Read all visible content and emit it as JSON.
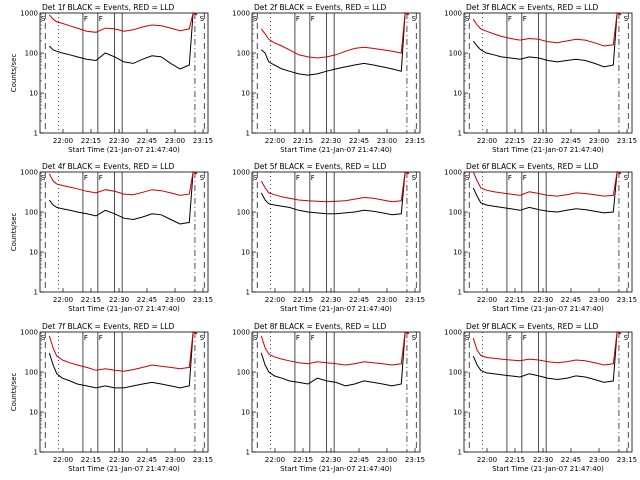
{
  "chart_data": [
    {
      "type": "line",
      "title": "Det 1f  BLACK = Events, RED = LLD",
      "ylabel": "Counts/sec",
      "xlabel": "Start Time (21-Jan-07 21:47:40)",
      "xticks": [
        "22:00",
        "22:15",
        "22:30",
        "22:45",
        "23:00",
        "23:15"
      ],
      "yticks": [
        "1",
        "10",
        "100",
        "1000"
      ],
      "yscale": "log",
      "ylim": [
        1,
        1000
      ],
      "markers": [
        "S",
        "F",
        "F",
        "S"
      ],
      "series": [
        {
          "name": "Events",
          "color": "#000000",
          "x": [
            5,
            7,
            9,
            12,
            16,
            20,
            25,
            30,
            35,
            40,
            45,
            50,
            55,
            60,
            65,
            70,
            75,
            80,
            82,
            84
          ],
          "y": [
            150,
            120,
            110,
            100,
            90,
            80,
            70,
            65,
            100,
            80,
            60,
            55,
            70,
            85,
            80,
            55,
            40,
            50,
            1000,
            900
          ]
        },
        {
          "name": "LLD",
          "color": "#cc0000",
          "x": [
            5,
            7,
            9,
            12,
            16,
            20,
            25,
            30,
            35,
            40,
            45,
            50,
            55,
            60,
            65,
            70,
            75,
            80,
            82,
            84
          ],
          "y": [
            900,
            700,
            600,
            550,
            480,
            420,
            350,
            330,
            420,
            400,
            350,
            380,
            450,
            500,
            480,
            420,
            360,
            400,
            1000,
            950
          ]
        }
      ]
    },
    {
      "type": "line",
      "title": "Det 2f  BLACK = Events, RED = LLD",
      "ylabel": "",
      "xlabel": "Start Time (21-Jan-07 21:47:40)",
      "xticks": [
        "22:00",
        "22:15",
        "22:30",
        "22:45",
        "23:00",
        "23:15"
      ],
      "yticks": [
        "1",
        "10",
        "100",
        "1000"
      ],
      "yscale": "log",
      "ylim": [
        1,
        1000
      ],
      "markers": [
        "S",
        "F",
        "F",
        "S"
      ],
      "series": [
        {
          "name": "Events",
          "color": "#000000",
          "x": [
            5,
            7,
            9,
            12,
            16,
            20,
            25,
            30,
            35,
            40,
            45,
            50,
            55,
            60,
            65,
            70,
            75,
            80,
            82,
            84
          ],
          "y": [
            120,
            100,
            60,
            50,
            40,
            35,
            30,
            28,
            30,
            35,
            40,
            45,
            50,
            55,
            50,
            45,
            40,
            35,
            1000,
            900
          ]
        },
        {
          "name": "LLD",
          "color": "#cc0000",
          "x": [
            5,
            7,
            9,
            12,
            16,
            20,
            25,
            30,
            35,
            40,
            45,
            50,
            55,
            60,
            65,
            70,
            75,
            80,
            82,
            84
          ],
          "y": [
            400,
            300,
            220,
            180,
            150,
            120,
            90,
            80,
            75,
            80,
            90,
            110,
            130,
            140,
            130,
            120,
            110,
            100,
            1000,
            950
          ]
        }
      ]
    },
    {
      "type": "line",
      "title": "Det 3f  BLACK = Events, RED = LLD",
      "ylabel": "",
      "xlabel": "Start Time (21-Jan-07 21:47:40)",
      "xticks": [
        "22:00",
        "22:15",
        "22:30",
        "22:45",
        "23:00",
        "23:15"
      ],
      "yticks": [
        "1",
        "10",
        "100",
        "1000"
      ],
      "yscale": "log",
      "ylim": [
        1,
        1000
      ],
      "markers": [
        "S",
        "F",
        "F",
        "S"
      ],
      "series": [
        {
          "name": "Events",
          "color": "#000000",
          "x": [
            5,
            7,
            9,
            12,
            16,
            20,
            25,
            30,
            35,
            40,
            45,
            50,
            55,
            60,
            65,
            70,
            75,
            80,
            82,
            84
          ],
          "y": [
            200,
            150,
            120,
            100,
            90,
            80,
            75,
            70,
            80,
            75,
            65,
            60,
            65,
            70,
            65,
            55,
            45,
            50,
            1000,
            900
          ]
        },
        {
          "name": "LLD",
          "color": "#cc0000",
          "x": [
            5,
            7,
            9,
            12,
            16,
            20,
            25,
            30,
            35,
            40,
            45,
            50,
            55,
            60,
            65,
            70,
            75,
            80,
            82,
            84
          ],
          "y": [
            700,
            500,
            400,
            350,
            300,
            260,
            230,
            210,
            230,
            220,
            190,
            180,
            200,
            220,
            210,
            180,
            150,
            160,
            1000,
            950
          ]
        }
      ]
    },
    {
      "type": "line",
      "title": "Det 4f  BLACK = Events, RED = LLD",
      "ylabel": "Counts/sec",
      "xlabel": "Start Time (21-Jan-07 21:47:40)",
      "xticks": [
        "22:00",
        "22:15",
        "22:30",
        "22:45",
        "23:00",
        "23:15"
      ],
      "yticks": [
        "1",
        "10",
        "100",
        "1000"
      ],
      "yscale": "log",
      "ylim": [
        1,
        1000
      ],
      "markers": [
        "S",
        "F",
        "F",
        "S"
      ],
      "series": [
        {
          "name": "Events",
          "color": "#000000",
          "x": [
            5,
            7,
            9,
            12,
            16,
            20,
            25,
            30,
            35,
            40,
            45,
            50,
            55,
            60,
            65,
            70,
            75,
            80,
            82,
            84
          ],
          "y": [
            200,
            150,
            130,
            120,
            110,
            100,
            90,
            80,
            110,
            90,
            70,
            65,
            75,
            90,
            85,
            65,
            50,
            55,
            1000,
            900
          ]
        },
        {
          "name": "LLD",
          "color": "#cc0000",
          "x": [
            5,
            7,
            9,
            12,
            16,
            20,
            25,
            30,
            35,
            40,
            45,
            50,
            55,
            60,
            65,
            70,
            75,
            80,
            82,
            84
          ],
          "y": [
            900,
            600,
            500,
            460,
            420,
            380,
            330,
            300,
            360,
            330,
            280,
            270,
            310,
            360,
            340,
            300,
            260,
            280,
            1000,
            950
          ]
        }
      ]
    },
    {
      "type": "line",
      "title": "Det 5f  BLACK = Events, RED = LLD",
      "ylabel": "",
      "xlabel": "Start Time (21-Jan-07 21:47:40)",
      "xticks": [
        "22:00",
        "22:15",
        "22:30",
        "22:45",
        "23:00",
        "23:15"
      ],
      "yticks": [
        "1",
        "10",
        "100",
        "1000"
      ],
      "yscale": "log",
      "ylim": [
        1,
        1000
      ],
      "markers": [
        "S",
        "F",
        "F",
        "S"
      ],
      "series": [
        {
          "name": "Events",
          "color": "#000000",
          "x": [
            5,
            7,
            9,
            12,
            16,
            20,
            25,
            30,
            35,
            40,
            45,
            50,
            55,
            60,
            65,
            70,
            75,
            80,
            82,
            84
          ],
          "y": [
            300,
            200,
            160,
            150,
            140,
            130,
            110,
            100,
            95,
            90,
            90,
            95,
            100,
            110,
            105,
            95,
            85,
            90,
            1000,
            900
          ]
        },
        {
          "name": "LLD",
          "color": "#cc0000",
          "x": [
            5,
            7,
            9,
            12,
            16,
            20,
            25,
            30,
            35,
            40,
            45,
            50,
            55,
            60,
            65,
            70,
            75,
            80,
            82,
            84
          ],
          "y": [
            600,
            400,
            300,
            270,
            240,
            220,
            200,
            190,
            185,
            180,
            185,
            190,
            210,
            230,
            220,
            200,
            180,
            190,
            1000,
            950
          ]
        }
      ]
    },
    {
      "type": "line",
      "title": "Det 6f  BLACK = Events, RED = LLD",
      "ylabel": "",
      "xlabel": "Start Time (21-Jan-07 21:47:40)",
      "xticks": [
        "22:00",
        "22:15",
        "22:30",
        "22:45",
        "23:00",
        "23:15"
      ],
      "yticks": [
        "1",
        "10",
        "100",
        "1000"
      ],
      "yscale": "log",
      "ylim": [
        1,
        1000
      ],
      "markers": [
        "S",
        "F",
        "F",
        "S"
      ],
      "series": [
        {
          "name": "Events",
          "color": "#000000",
          "x": [
            5,
            7,
            9,
            12,
            16,
            20,
            25,
            30,
            35,
            40,
            45,
            50,
            55,
            60,
            65,
            70,
            75,
            80,
            82,
            84
          ],
          "y": [
            400,
            250,
            170,
            150,
            140,
            130,
            120,
            110,
            130,
            115,
            105,
            100,
            110,
            120,
            115,
            105,
            95,
            100,
            1000,
            900
          ]
        },
        {
          "name": "LLD",
          "color": "#cc0000",
          "x": [
            5,
            7,
            9,
            12,
            16,
            20,
            25,
            30,
            35,
            40,
            45,
            50,
            55,
            60,
            65,
            70,
            75,
            80,
            82,
            84
          ],
          "y": [
            1000,
            600,
            400,
            350,
            320,
            300,
            280,
            260,
            320,
            290,
            260,
            250,
            270,
            300,
            290,
            270,
            250,
            260,
            1000,
            950
          ]
        }
      ]
    },
    {
      "type": "line",
      "title": "Det 7f  BLACK = Events, RED = LLD",
      "ylabel": "Counts/sec",
      "xlabel": "Start Time (21-Jan-07 21:47:40)",
      "xticks": [
        "22:00",
        "22:15",
        "22:30",
        "22:45",
        "23:00",
        "23:15"
      ],
      "yticks": [
        "1",
        "10",
        "100",
        "1000"
      ],
      "yscale": "log",
      "ylim": [
        1,
        1000
      ],
      "markers": [
        "S",
        "F",
        "F",
        "S"
      ],
      "series": [
        {
          "name": "Events",
          "color": "#000000",
          "x": [
            5,
            7,
            9,
            12,
            16,
            20,
            25,
            30,
            35,
            40,
            45,
            50,
            55,
            60,
            65,
            70,
            75,
            80,
            82,
            84
          ],
          "y": [
            300,
            150,
            90,
            70,
            60,
            50,
            45,
            40,
            45,
            40,
            40,
            45,
            50,
            55,
            50,
            45,
            40,
            45,
            1000,
            900
          ]
        },
        {
          "name": "LLD",
          "color": "#cc0000",
          "x": [
            5,
            7,
            9,
            12,
            16,
            20,
            25,
            30,
            35,
            40,
            45,
            50,
            55,
            60,
            65,
            70,
            75,
            80,
            82,
            84
          ],
          "y": [
            800,
            400,
            250,
            200,
            170,
            150,
            130,
            110,
            120,
            110,
            105,
            115,
            130,
            150,
            140,
            130,
            120,
            130,
            1000,
            950
          ]
        }
      ]
    },
    {
      "type": "line",
      "title": "Det 8f  BLACK = Events, RED = LLD",
      "ylabel": "",
      "xlabel": "Start Time (21-Jan-07 21:47:40)",
      "xticks": [
        "22:00",
        "22:15",
        "22:30",
        "22:45",
        "23:00",
        "23:15"
      ],
      "yticks": [
        "1",
        "10",
        "100",
        "1000"
      ],
      "yscale": "log",
      "ylim": [
        1,
        1000
      ],
      "markers": [
        "S",
        "F",
        "F",
        "S"
      ],
      "series": [
        {
          "name": "Events",
          "color": "#000000",
          "x": [
            5,
            7,
            9,
            12,
            16,
            20,
            25,
            30,
            35,
            40,
            45,
            50,
            55,
            60,
            65,
            70,
            75,
            80,
            82,
            84
          ],
          "y": [
            300,
            150,
            100,
            80,
            70,
            60,
            55,
            50,
            70,
            60,
            55,
            45,
            50,
            60,
            55,
            50,
            45,
            50,
            1000,
            900
          ]
        },
        {
          "name": "LLD",
          "color": "#cc0000",
          "x": [
            5,
            7,
            9,
            12,
            16,
            20,
            25,
            30,
            35,
            40,
            45,
            50,
            55,
            60,
            65,
            70,
            75,
            80,
            82,
            84
          ],
          "y": [
            800,
            400,
            280,
            240,
            210,
            190,
            170,
            160,
            180,
            170,
            160,
            150,
            160,
            180,
            170,
            160,
            150,
            160,
            1000,
            950
          ]
        }
      ]
    },
    {
      "type": "line",
      "title": "Det 9f  BLACK = Events, RED = LLD",
      "ylabel": "",
      "xlabel": "Start Time (21-Jan-07 21:47:40)",
      "xticks": [
        "22:00",
        "22:15",
        "22:30",
        "22:45",
        "23:00",
        "23:15"
      ],
      "yticks": [
        "1",
        "10",
        "100",
        "1000"
      ],
      "yscale": "log",
      "ylim": [
        1,
        1000
      ],
      "markers": [
        "S",
        "F",
        "F",
        "S"
      ],
      "series": [
        {
          "name": "Events",
          "color": "#000000",
          "x": [
            5,
            7,
            9,
            12,
            16,
            20,
            25,
            30,
            35,
            40,
            45,
            50,
            55,
            60,
            65,
            70,
            75,
            80,
            82,
            84
          ],
          "y": [
            250,
            150,
            110,
            95,
            90,
            85,
            80,
            75,
            90,
            80,
            70,
            65,
            70,
            80,
            75,
            65,
            55,
            60,
            1000,
            900
          ]
        },
        {
          "name": "LLD",
          "color": "#cc0000",
          "x": [
            5,
            7,
            9,
            12,
            16,
            20,
            25,
            30,
            35,
            40,
            45,
            50,
            55,
            60,
            65,
            70,
            75,
            80,
            82,
            84
          ],
          "y": [
            700,
            350,
            260,
            230,
            220,
            210,
            200,
            190,
            210,
            200,
            180,
            170,
            180,
            200,
            190,
            170,
            150,
            160,
            1000,
            950
          ]
        }
      ]
    }
  ]
}
